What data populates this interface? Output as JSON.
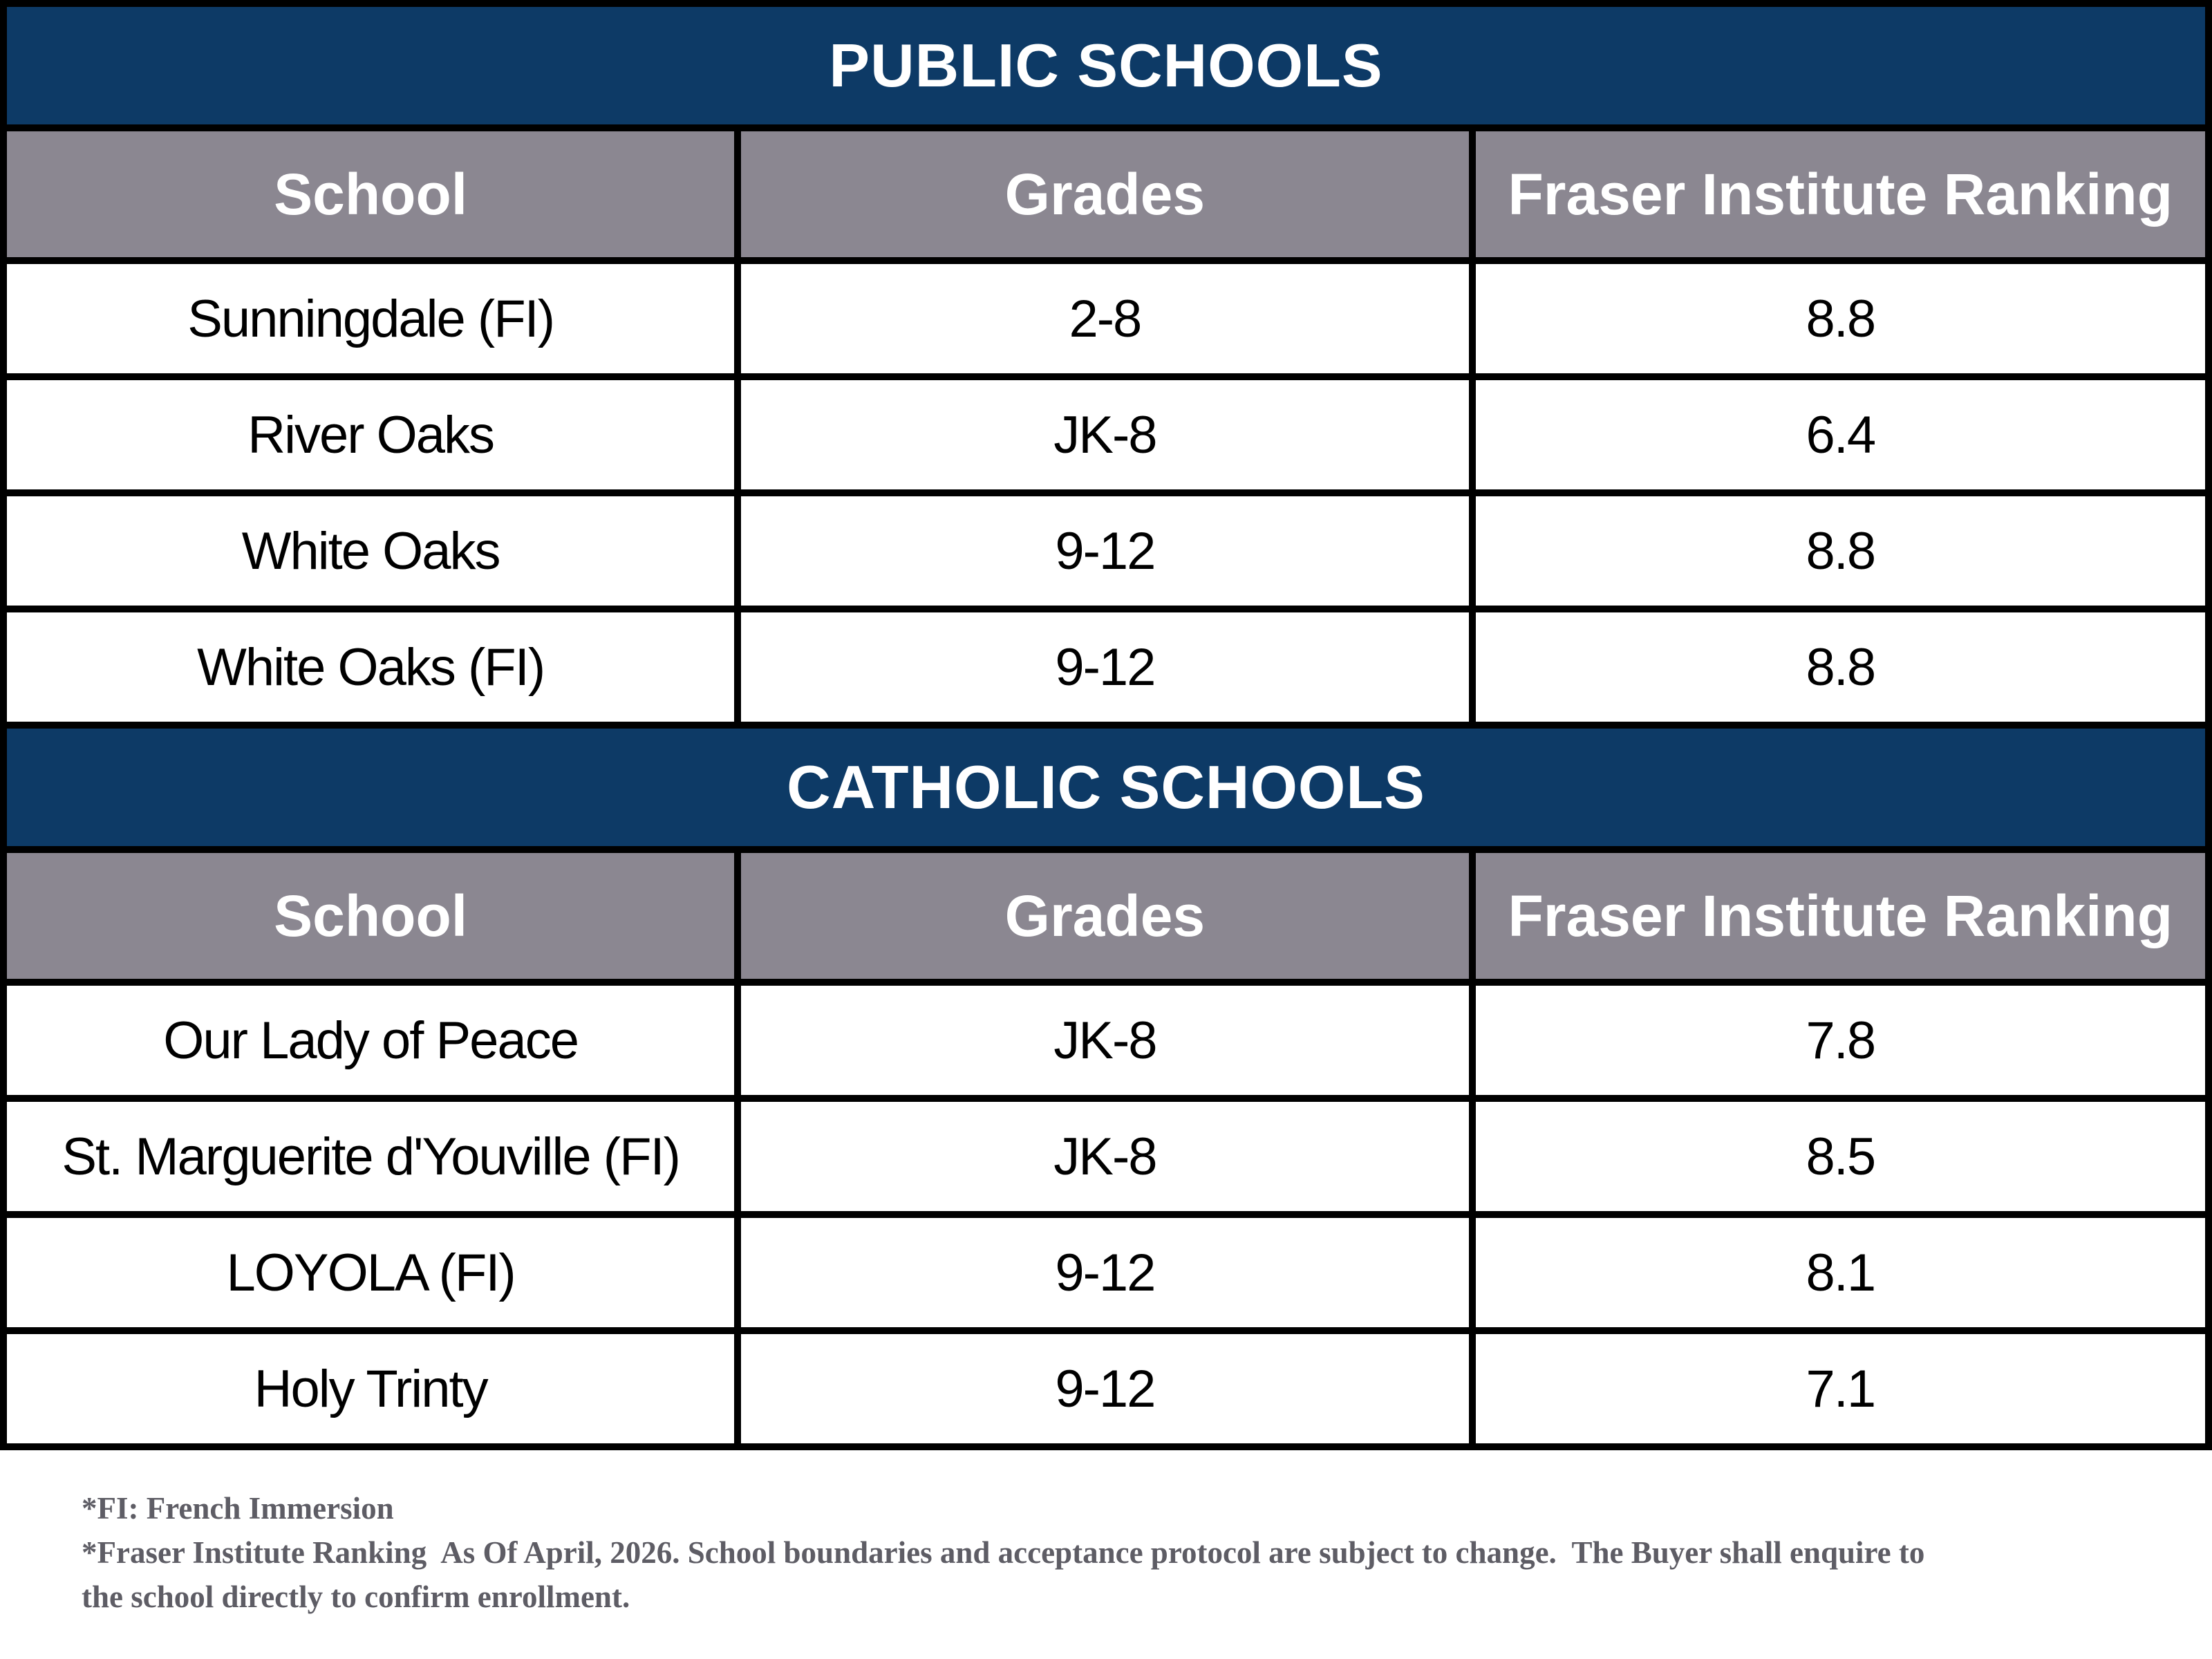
{
  "colors": {
    "banner_background": "#0d3a66",
    "banner_text": "#ffffff",
    "column_header_background": "#8b8791",
    "column_header_text": "#ffffff",
    "cell_text": "#000000",
    "table_border": "#000000",
    "page_background": "#ffffff",
    "footnote_text": "#5e5d65"
  },
  "sections": [
    {
      "title": "PUBLIC SCHOOLS",
      "columns": [
        "School",
        "Grades",
        "Fraser Institute Ranking"
      ],
      "rows": [
        [
          "Sunningdale (FI)",
          "2-8",
          "8.8"
        ],
        [
          "River Oaks",
          "JK-8",
          "6.4"
        ],
        [
          "White Oaks",
          "9-12",
          "8.8"
        ],
        [
          "White Oaks (FI)",
          "9-12",
          "8.8"
        ]
      ]
    },
    {
      "title": "CATHOLIC SCHOOLS",
      "columns": [
        "School",
        "Grades",
        "Fraser Institute Ranking"
      ],
      "rows": [
        [
          "Our Lady of Peace",
          "JK-8",
          "7.8"
        ],
        [
          "St. Marguerite d'Youville (FI)",
          "JK-8",
          "8.5"
        ],
        [
          "LOYOLA (FI)",
          "9-12",
          "8.1"
        ],
        [
          "Holy Trinty",
          "9-12",
          "7.1"
        ]
      ]
    }
  ],
  "footnotes": {
    "lines": [
      "*FI: French Immersion",
      "*Fraser Institute Ranking  As Of April, 2026. School boundaries and acceptance protocol are subject to change.  The Buyer shall enquire to",
      "the school directly to confirm enrollment."
    ]
  }
}
